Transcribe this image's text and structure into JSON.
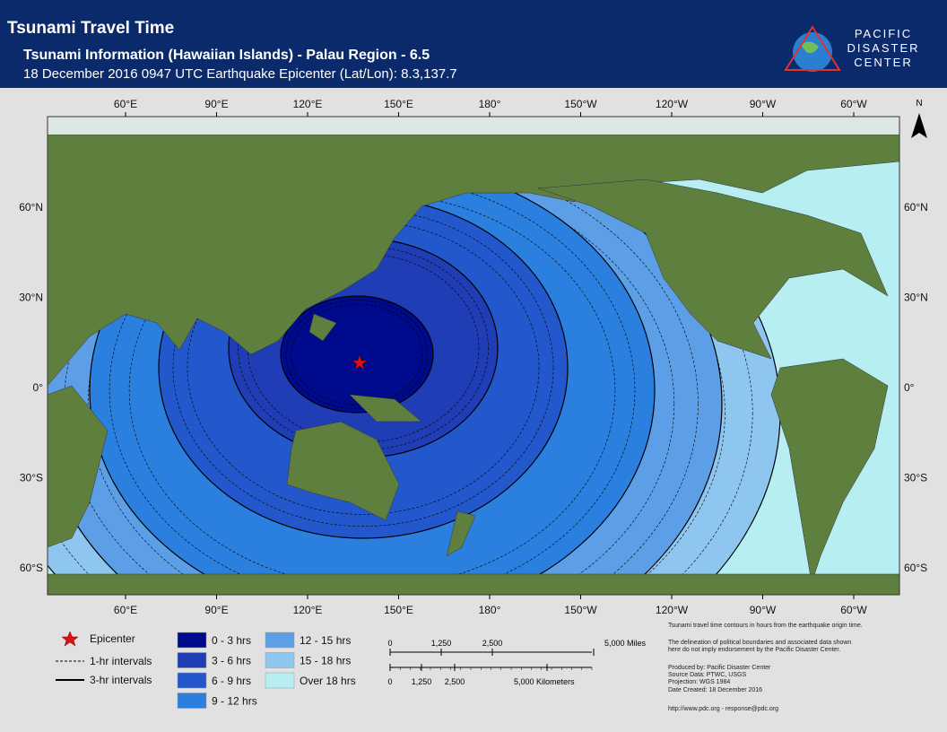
{
  "header": {
    "title": "Tsunami Travel Time",
    "subtitle": "Tsunami Information (Hawaiian Islands) - Palau Region - 6.5",
    "info": "18 December 2016 0947 UTC Earthquake Epicenter (Lat/Lon): 8.3,137.7"
  },
  "logo": {
    "line1": "PACIFIC",
    "line2": "DISASTER",
    "line3": "CENTER"
  },
  "map": {
    "north": "N",
    "longitudes": [
      "60°E",
      "90°E",
      "120°E",
      "150°E",
      "180°",
      "150°W",
      "120°W",
      "90°W",
      "60°W"
    ],
    "latitudes": [
      "60°N",
      "30°N",
      "0°",
      "30°S",
      "60°S"
    ]
  },
  "legend": {
    "epicenter": "Epicenter",
    "one_hr": "1-hr intervals",
    "three_hr": "3-hr intervals",
    "zones": [
      {
        "label": "0 - 3 hrs",
        "color": "#000a8c"
      },
      {
        "label": "3 - 6 hrs",
        "color": "#1f3db5"
      },
      {
        "label": "6 - 9 hrs",
        "color": "#2358cc"
      },
      {
        "label": "9 - 12 hrs",
        "color": "#2b80df"
      },
      {
        "label": "12 - 15 hrs",
        "color": "#5d9fe6"
      },
      {
        "label": "15 - 18 hrs",
        "color": "#8fc6ef"
      },
      {
        "label": "Over 18 hrs",
        "color": "#b6eef2"
      }
    ]
  },
  "scale": {
    "miles": [
      "0",
      "1,250",
      "2,500",
      "5,000 Miles"
    ],
    "km": [
      "0",
      "1,250",
      "2,500",
      "5,000 Kilometers"
    ]
  },
  "notes": [
    "Tsunami travel time contours in hours from the earthquake origin time.",
    "The delineation of political boundaries and associated data shown",
    "here do not imply endorsement by the Pacific Disaster Center.",
    "Produced by: Pacific Disaster Center",
    "Source Data: PTWC, USGS",
    "Projection: WGS 1984",
    "Date Created: 18 December 2016",
    "http://www.pdc.org - response@pdc.org"
  ]
}
